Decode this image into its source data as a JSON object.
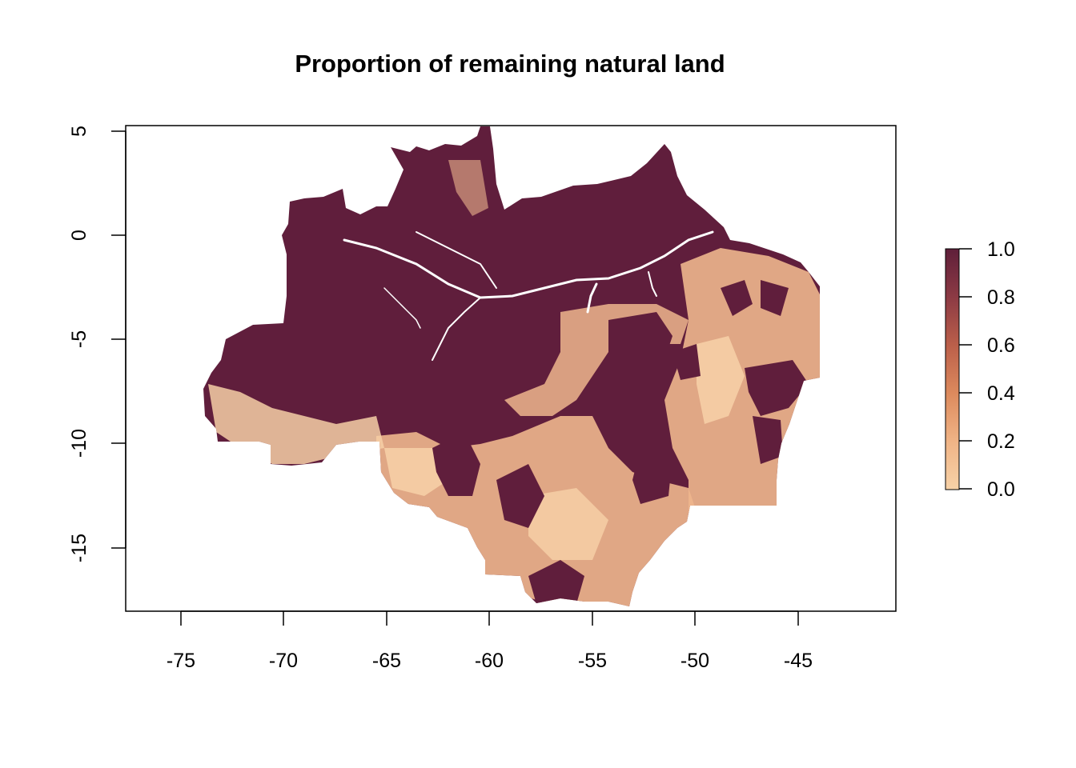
{
  "title": "Proportion of remaining natural land",
  "axes": {
    "x": {
      "range": [
        -77.6,
        -40.6
      ],
      "ticks": [
        "-75",
        "-70",
        "-65",
        "-60",
        "-55",
        "-50",
        "-45"
      ]
    },
    "y": {
      "range": [
        -18.1,
        5.3
      ],
      "ticks": [
        "5",
        "0",
        "-5",
        "-10",
        "-15"
      ]
    }
  },
  "legend": {
    "placement": "right",
    "range": [
      0.0,
      1.0
    ],
    "ticks": [
      "1.0",
      "0.8",
      "0.6",
      "0.4",
      "0.2",
      "0.0"
    ],
    "colors": {
      "low": "#f7d2a8",
      "mid_low": "#e8a577",
      "mid": "#d0774f",
      "mid_high": "#a64a46",
      "high": "#5f1f3a"
    }
  },
  "colors": {
    "forest": "#601e3c",
    "cleared": "#eeb68d",
    "cleared_light": "#f6cfa6",
    "water": "#ffffff"
  }
}
